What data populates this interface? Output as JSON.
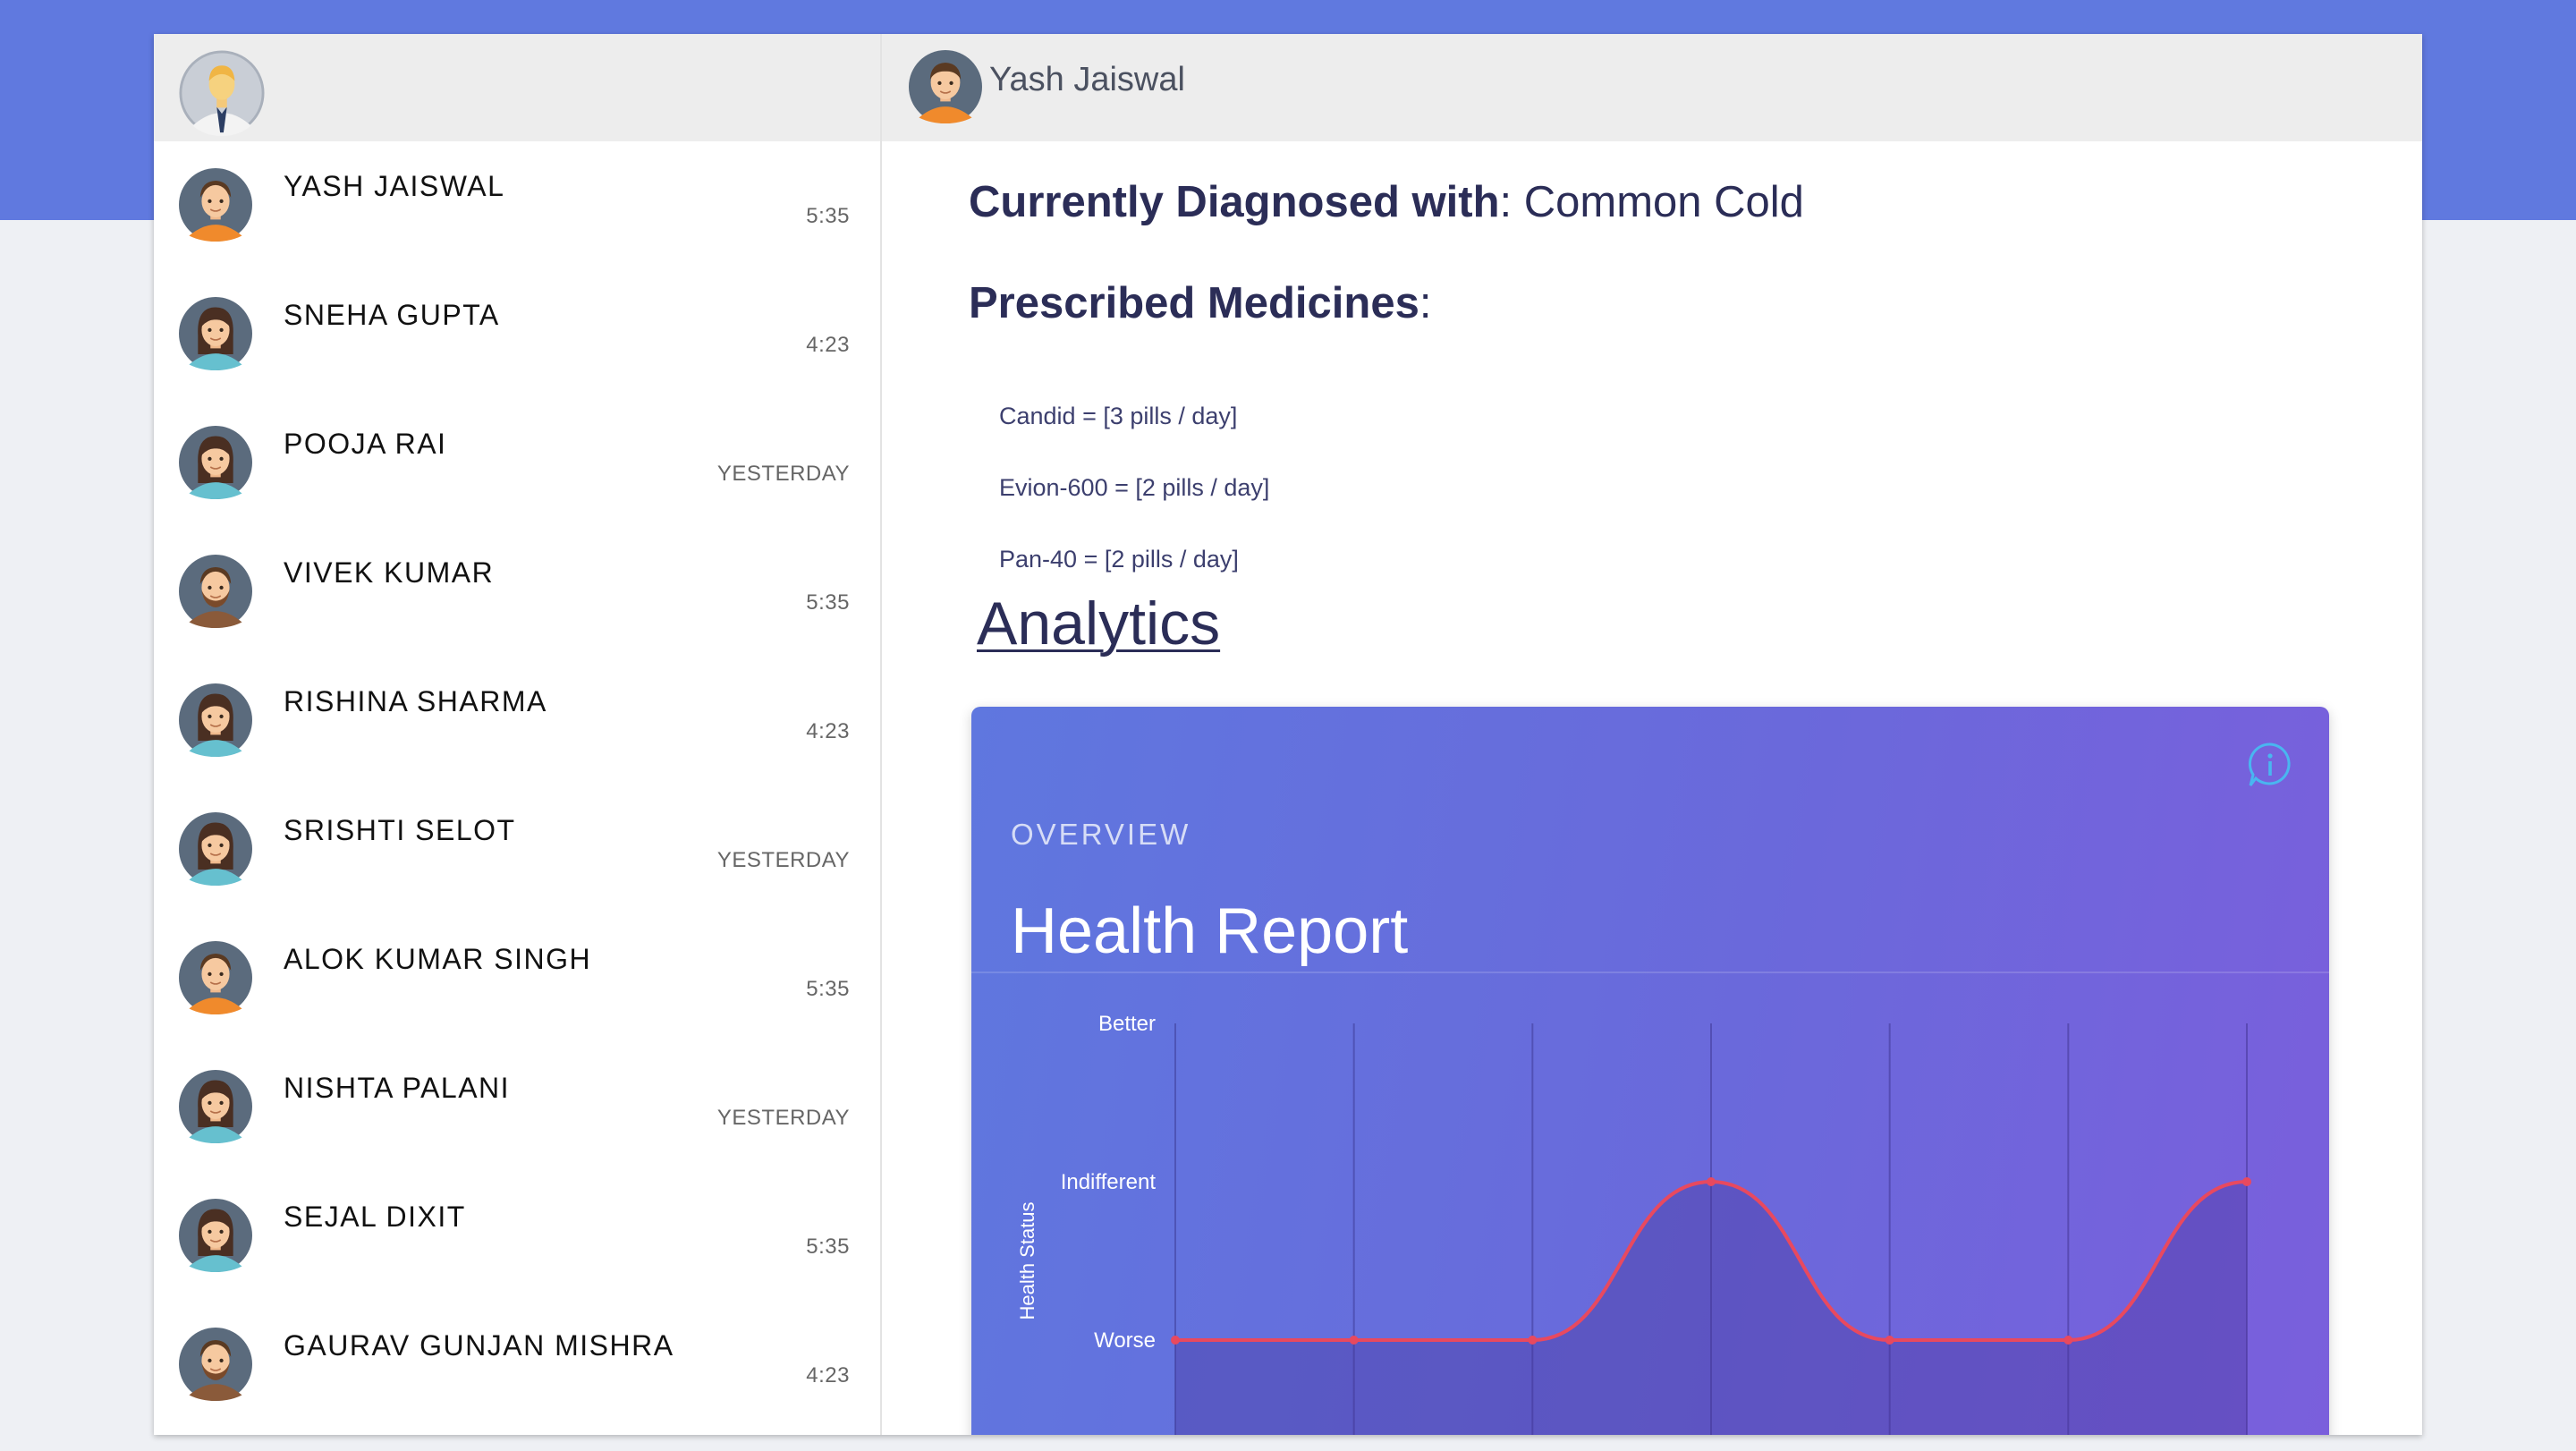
{
  "colors": {
    "brand": "#6079df",
    "line": "#e8495f",
    "header_bg": "#ededed"
  },
  "sidebar": {
    "contacts": [
      {
        "name": "YASH JAISWAL",
        "time": "5:35",
        "avatar": "male"
      },
      {
        "name": "SNEHA GUPTA",
        "time": "4:23",
        "avatar": "female"
      },
      {
        "name": "POOJA RAI",
        "time": "YESTERDAY",
        "avatar": "female"
      },
      {
        "name": "VIVEK KUMAR",
        "time": "5:35",
        "avatar": "male-beard"
      },
      {
        "name": "RISHINA SHARMA",
        "time": "4:23",
        "avatar": "female"
      },
      {
        "name": "SRISHTI SELOT",
        "time": "YESTERDAY",
        "avatar": "female"
      },
      {
        "name": "ALOK KUMAR SINGH",
        "time": "5:35",
        "avatar": "male"
      },
      {
        "name": "NISHTA PALANI",
        "time": "YESTERDAY",
        "avatar": "female"
      },
      {
        "name": "SEJAL DIXIT",
        "time": "5:35",
        "avatar": "female"
      },
      {
        "name": "GAURAV GUNJAN MISHRA",
        "time": "4:23",
        "avatar": "male-beard"
      }
    ]
  },
  "chat": {
    "header_name": "Yash Jaiswal",
    "diagnosis_label": "Currently Diagnosed with",
    "diagnosis_sep": ":",
    "diagnosis_value": " Common Cold",
    "prescribed_label": "Prescribed Medicines",
    "prescribed_sep": ":",
    "medicines": [
      "Candid = [3 pills / day]",
      "Evion-600 = [2 pills / day]",
      "Pan-40 = [2 pills / day]"
    ],
    "analytics_link": "Analytics"
  },
  "card": {
    "overline": "OVERVIEW",
    "title": "Health Report"
  },
  "chart_data": {
    "type": "line",
    "title": "Health Report",
    "xlabel": "",
    "ylabel": "Health Status",
    "y_categories": [
      "Worse",
      "Indifferent",
      "Better"
    ],
    "ylim": [
      0,
      2
    ],
    "x": [
      1,
      2,
      3,
      4,
      5,
      6,
      7
    ],
    "series": [
      {
        "name": "Health Status",
        "values": [
          0,
          0,
          0,
          1,
          0,
          0,
          1
        ]
      }
    ],
    "smooth": true,
    "area_fill": true,
    "grid": "vertical"
  }
}
